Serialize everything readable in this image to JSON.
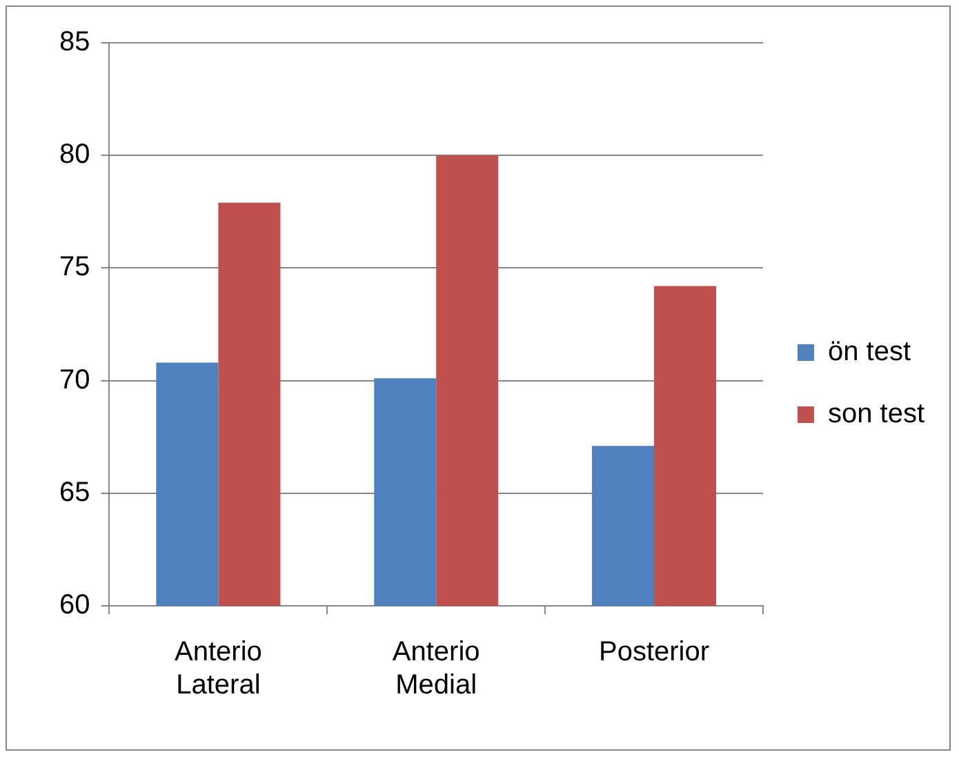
{
  "chart_data": {
    "type": "bar",
    "categories": [
      "Anterio Lateral",
      "Anterio Medial",
      "Posterior"
    ],
    "series": [
      {
        "name": "ön test",
        "color": "#4f81bd",
        "values": [
          70.8,
          70.1,
          67.1
        ]
      },
      {
        "name": "son test",
        "color": "#c0504d",
        "values": [
          77.9,
          80.0,
          74.2
        ]
      }
    ],
    "ylim": [
      60,
      85
    ],
    "yticks": [
      60,
      65,
      70,
      75,
      80,
      85
    ],
    "grid": "y",
    "legend": "right"
  }
}
